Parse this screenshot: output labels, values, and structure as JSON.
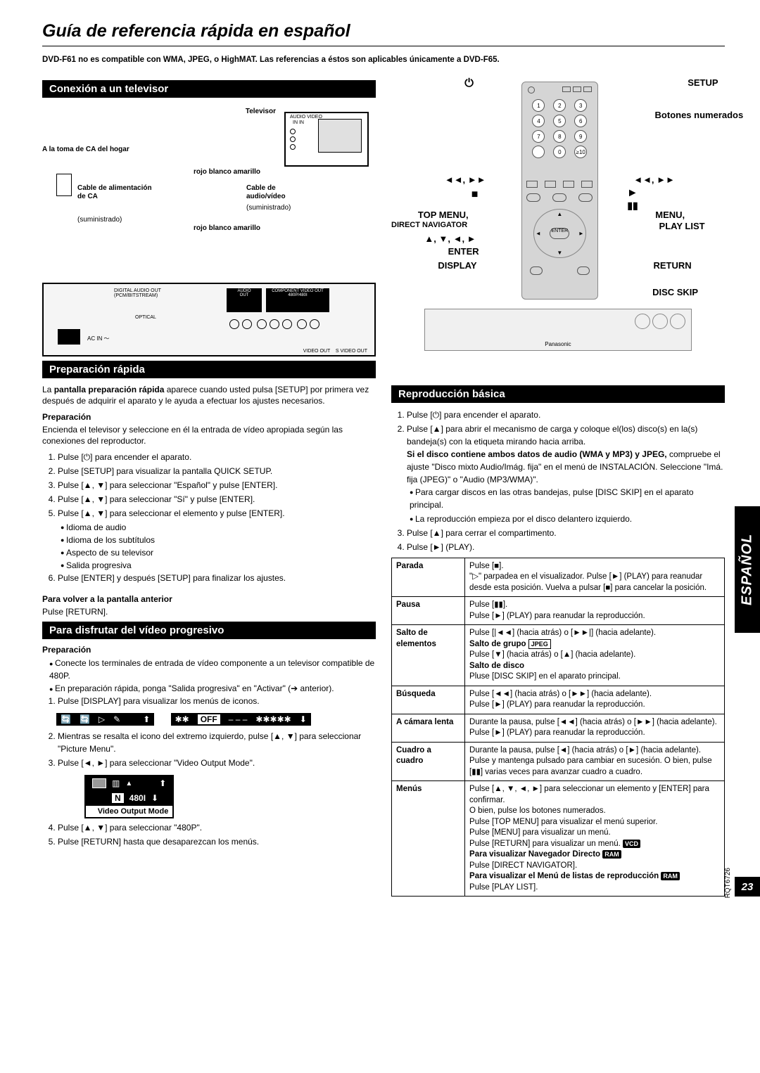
{
  "page": {
    "title": "Guía de referencia rápida en español",
    "intro": "DVD-F61 no es compatible con WMA, JPEG, o HighMAT. Las referencias a éstos son aplicables únicamente a DVD-F65.",
    "side_tab": "ESPAÑOL",
    "page_number": "23",
    "doc_code": "RQT6726"
  },
  "sec_conn": {
    "title": "Conexión a un televisor",
    "labels": {
      "televisor": "Televisor",
      "toma": "A la toma de CA del hogar",
      "cable_ca": "Cable de alimentación de CA",
      "suministrado": "(suministrado)",
      "rba": "rojo blanco amarillo",
      "cable_av": "Cable de audio/vídeo",
      "audio_in": "AUDIO IN",
      "video_in": "VIDEO IN",
      "audio_video": "AUDIO   VIDEO",
      "in_in": "IN         IN"
    }
  },
  "sec_prep": {
    "title": "Preparación rápida",
    "intro_a": "La ",
    "intro_b": "pantalla preparación rápida",
    "intro_c": " aparece cuando usted pulsa [SETUP] por primera vez después de adquirir el aparato y le ayuda a efectuar los ajustes necesarios.",
    "sub1": "Preparación",
    "sub1_text": "Encienda el televisor y seleccione en él la entrada de vídeo apropiada según las conexiones del reproductor.",
    "steps": [
      "Pulse [⏻] para encender el aparato.",
      "Pulse [SETUP] para visualizar la pantalla QUICK SETUP.",
      "Pulse [▲, ▼] para seleccionar \"Español\" y pulse [ENTER].",
      "Pulse [▲, ▼] para seleccionar \"Sí\" y pulse [ENTER].",
      "Pulse [▲, ▼] para seleccionar el elemento y pulse [ENTER]."
    ],
    "bullets": [
      "Idioma de audio",
      "Idioma de los subtítulos",
      "Aspecto de su televisor",
      "Salida progresiva"
    ],
    "step6": "Pulse [ENTER] y después [SETUP] para finalizar los ajustes.",
    "sub2": "Para volver a la pantalla anterior",
    "sub2_text": "Pulse [RETURN]."
  },
  "sec_prog": {
    "title": "Para disfrutar del vídeo progresivo",
    "sub": "Preparación",
    "bul1": "Conecte los terminales de entrada de vídeo componente a un televisor compatible de 480P.",
    "bul2": "En preparación rápida, ponga \"Salida progresiva\" en \"Activar\" (➔ anterior).",
    "step1": "Pulse [DISPLAY] para visualizar los menús de iconos.",
    "iconbar": {
      "off": "OFF",
      "stars1": "✱✱",
      "dash": "– – –",
      "stars2": "✱✱✱✱✱"
    },
    "step2": "Mientras se resalta el icono del extremo izquierdo, pulse [▲, ▼] para seleccionar \"Picture Menu\".",
    "step3": "Pulse [◄, ►] para seleccionar \"Video Output Mode\".",
    "vout": {
      "n": "N",
      "val": "480I",
      "label": "Video Output Mode"
    },
    "step4": "Pulse [▲, ▼] para seleccionar \"480P\".",
    "step5": "Pulse [RETURN] hasta que desaparezcan los menús."
  },
  "remote": {
    "setup": "SETUP",
    "botones": "Botones numerados",
    "rev_fwd_l": "◄◄, ►►",
    "rev_fwd_r": "◄◄, ►►",
    "stop": "■",
    "play": "►",
    "pause_sym": "▮▮",
    "top_menu": "TOP MENU,",
    "direct_nav": "DIRECT NAVIGATOR",
    "arrows": "▲, ▼, ◄, ►",
    "enter": "ENTER",
    "display": "DISPLAY",
    "menu": "MENU,",
    "playlist": "PLAY LIST",
    "return": "RETURN",
    "disc_skip": "DISC SKIP"
  },
  "sec_basic": {
    "title": "Reproducción básica",
    "s1": "Pulse [⏻] para encender el aparato.",
    "s2": "Pulse [▲] para abrir el mecanismo de carga y coloque el(los) disco(s) en la(s) bandeja(s) con la etiqueta mirando hacia arriba.",
    "s2b": "Si el disco contiene ambos datos de audio (WMA y MP3) y JPEG,",
    "s2c": " compruebe el ajuste \"Disco mixto Audio/Imág. fija\" en el menú de INSTALACIÓN. Seleccione \"Imá. fija (JPEG)\" o \"Audio (MP3/WMA)\".",
    "s2bul1": "Para cargar discos en las otras bandejas, pulse [DISC SKIP] en el aparato principal.",
    "s2bul2": "La reproducción empieza por el disco delantero izquierdo.",
    "s3": "Pulse [▲] para cerrar el compartimento.",
    "s4": "Pulse [►] (PLAY).",
    "table": [
      {
        "h": "Parada",
        "b": "Pulse [■].\n\"▷\" parpadea en el visualizador. Pulse [►] (PLAY) para reanudar desde esta posición. Vuelva a pulsar [■] para cancelar la posición."
      },
      {
        "h": "Pausa",
        "b": "Pulse [▮▮].\nPulse [►] (PLAY) para reanudar la reproducción."
      },
      {
        "h": "Salto de elementos",
        "b": "Pulse [|◄◄] (hacia atrás) o [►►|] (hacia adelante).\n<b>Salto de grupo</b> <span class='tag-inv'>JPEG</span>\nPulse [▼] (hacia atrás) o [▲] (hacia adelante).\n<b>Salto de disco</b>\nPluse [DISC SKIP] en el aparato principal."
      },
      {
        "h": "Búsqueda",
        "b": "Pulse [◄◄] (hacia atrás) o [►►] (hacia adelante).\nPulse [►] (PLAY) para reanudar la reproducción."
      },
      {
        "h": "A cámara lenta",
        "b": "Durante la pausa, pulse [◄◄] (hacia atrás) o [►►] (hacia adelante).\nPulse [►] (PLAY) para reanudar la reproducción."
      },
      {
        "h": "Cuadro a cuadro",
        "b": "Durante la pausa, pulse [◄] (hacia atrás) o [►] (hacia adelante).\nPulse y mantenga pulsado para cambiar en sucesión. O bien, pulse [▮▮] varias veces para avanzar cuadro a cuadro."
      },
      {
        "h": "Menús",
        "b": "Pulse [▲, ▼, ◄, ►] para seleccionar un elemento y [ENTER] para confirmar.\nO bien, pulse los botones numerados.\nPulse [TOP MENU] para visualizar el menú superior.\nPulse [MENU] para visualizar un menú.\nPulse [RETURN] para visualizar un menú. <span class='tag'>VCD</span>\n<b>Para visualizar Navegador Directo</b> <span class='tag'>RAM</span>\nPulse [DIRECT NAVIGATOR].\n<b>Para visualizar el Menú de listas de reproducción</b> <span class='tag'>RAM</span>\nPulse [PLAY LIST]."
      }
    ]
  }
}
